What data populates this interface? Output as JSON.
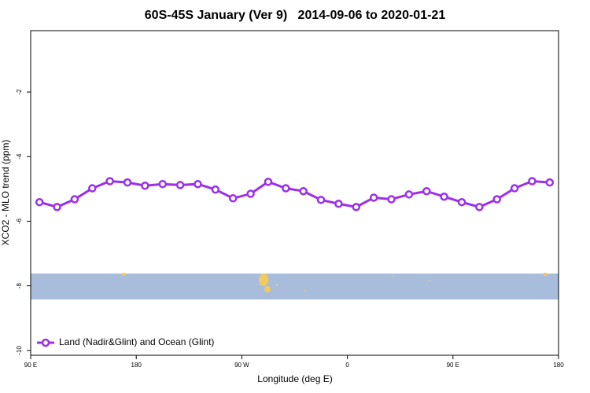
{
  "chart_data": {
    "type": "line",
    "title": "60S-45S January (Ver 9)   2014-09-06 to 2020-01-21",
    "x_label": "Longitude (deg E)",
    "y_label": "XCO2 - MLO trend (ppm)",
    "x": [
      97.5,
      112.5,
      127.5,
      142.5,
      157.5,
      172.5,
      187.5,
      202.5,
      217.5,
      232.5,
      247.5,
      262.5,
      277.5,
      292.5,
      307.5,
      322.5,
      337.5,
      352.5,
      367.5,
      382.5,
      397.5,
      412.5,
      427.5,
      442.5,
      457.5,
      472.5,
      487.5,
      502.5,
      517.5,
      532.5
    ],
    "series": [
      {
        "name": "Land (Nadir&Glint) and Ocean (Glint)",
        "color": "#9b30e8",
        "values": [
          -5.41,
          -5.56,
          -5.32,
          -4.98,
          -4.76,
          -4.8,
          -4.9,
          -4.85,
          -4.88,
          -4.85,
          -5.02,
          -5.29,
          -5.15,
          -4.78,
          -4.98,
          -5.07,
          -5.34,
          -5.46,
          -5.56,
          -5.27,
          -5.32,
          -5.17,
          -5.07,
          -5.24,
          -5.41,
          -5.56,
          -5.32,
          -4.98,
          -4.76,
          -4.8
        ]
      }
    ],
    "xlim": [
      90,
      540
    ],
    "xticks": [
      {
        "value": 90,
        "label": "90 E"
      },
      180,
      {
        "value": 270,
        "label": "90 W"
      },
      {
        "value": 360,
        "label": "0"
      },
      {
        "value": 450,
        "label": "90 E"
      },
      {
        "value": 540,
        "label": "180"
      }
    ],
    "ylim": [
      -10.15,
      -0.1
    ],
    "yticks": [
      -2,
      -4,
      -6,
      -8,
      -10
    ],
    "legend": "bottom-left"
  }
}
